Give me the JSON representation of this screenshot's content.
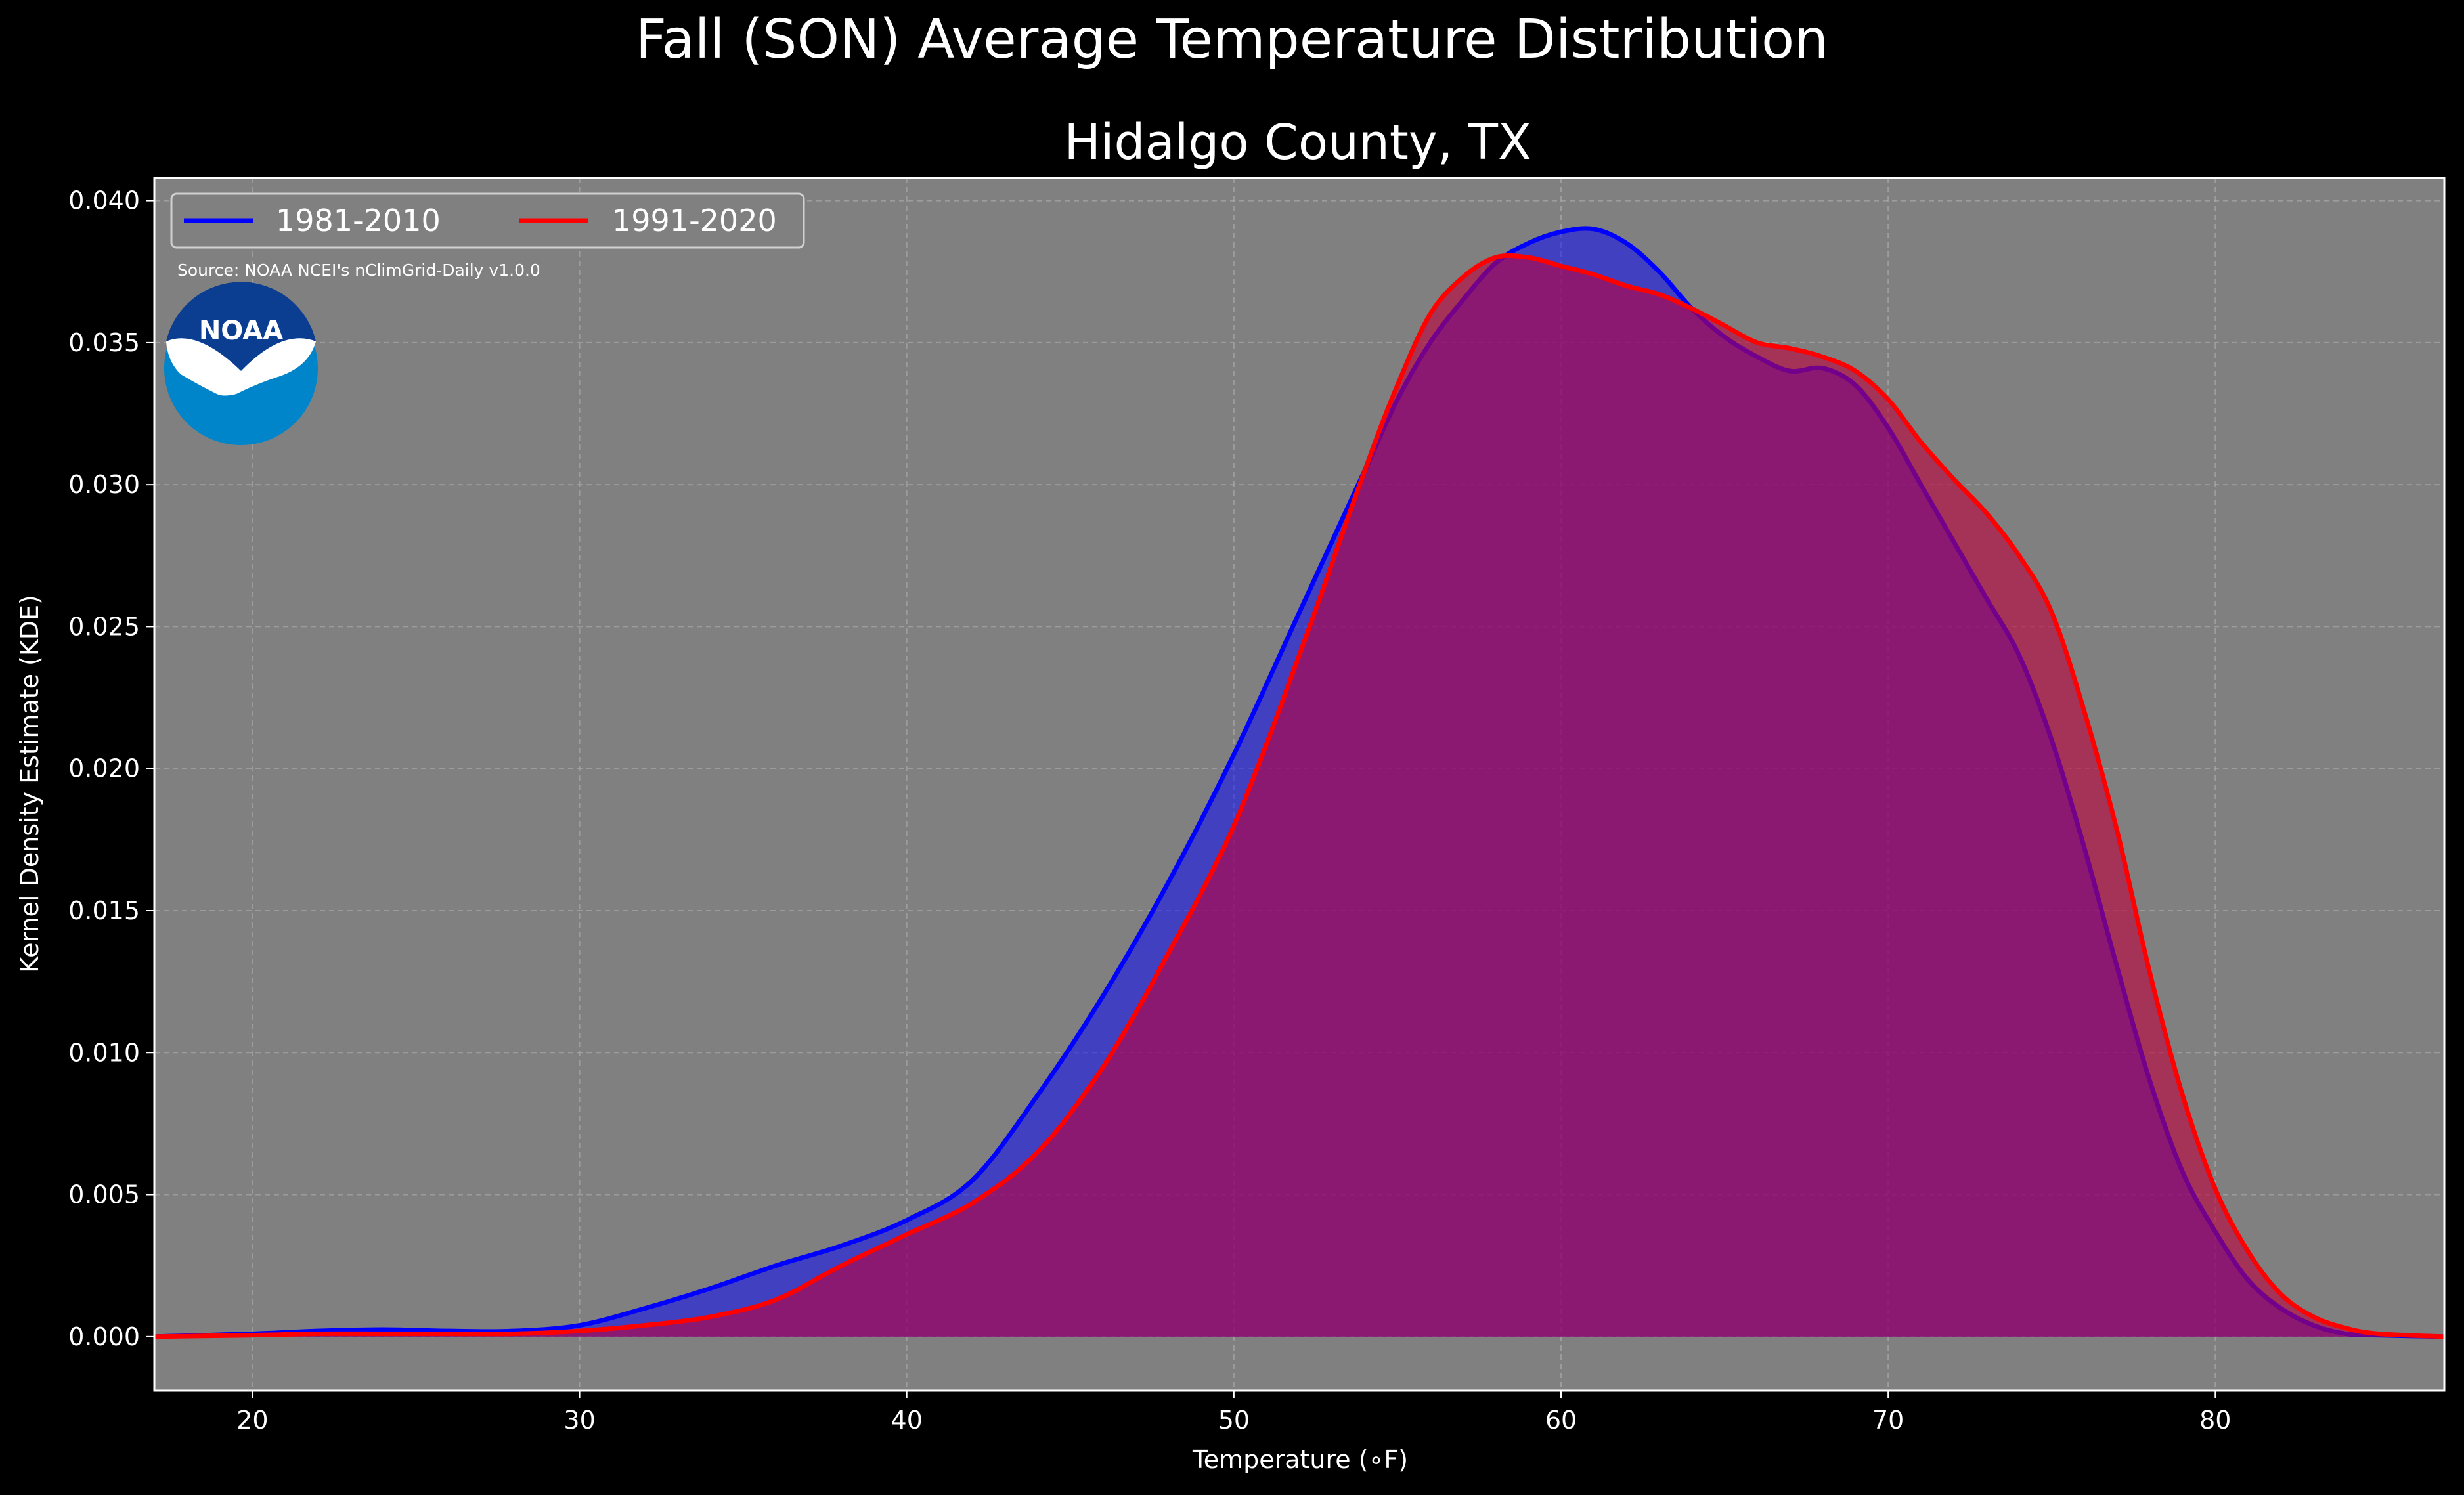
{
  "chart_data": {
    "type": "area",
    "title": "Fall (SON) Average Temperature Distribution",
    "subtitle": "Hidalgo County, TX",
    "xlabel": "Temperature (∘F)",
    "ylabel": "Kernel Density Estimate (KDE)",
    "xlim": [
      17,
      87
    ],
    "ylim": [
      -0.0019,
      0.0408
    ],
    "xticks": [
      "20",
      "30",
      "40",
      "50",
      "60",
      "70",
      "80"
    ],
    "yticks": [
      "0.000",
      "0.005",
      "0.010",
      "0.015",
      "0.020",
      "0.025",
      "0.030",
      "0.035",
      "0.040"
    ],
    "grid": true,
    "legend_position": "top-left",
    "annotation": "Source: NOAA NCEI's nClimGrid-Daily v1.0.0",
    "logo": {
      "text": "NOAA",
      "icon": "noaa-logo-icon"
    },
    "colors": {
      "background": "#000000",
      "plot_background": "#808080",
      "grid": "#b0b0b0"
    },
    "x": [
      17,
      20,
      22,
      24,
      26,
      28,
      30,
      32,
      34,
      36,
      38,
      40,
      42,
      44,
      46,
      48,
      50,
      52,
      54,
      55,
      56,
      57,
      58,
      59,
      60,
      61,
      62,
      63,
      64,
      65,
      66,
      67,
      68,
      69,
      70,
      71,
      72,
      73,
      74,
      75,
      76,
      77,
      78,
      79,
      80,
      81,
      82,
      83,
      84,
      85,
      87
    ],
    "series": [
      {
        "name": "1981-2010",
        "color": "#0000ff",
        "fill": "rgba(0,0,255,0.5)",
        "values": [
          0.0,
          0.0001,
          0.0002,
          0.00025,
          0.0002,
          0.0002,
          0.0004,
          0.001,
          0.0017,
          0.0025,
          0.0032,
          0.0041,
          0.0055,
          0.0085,
          0.012,
          0.016,
          0.0205,
          0.0255,
          0.0305,
          0.033,
          0.035,
          0.0365,
          0.0378,
          0.0385,
          0.0389,
          0.039,
          0.0385,
          0.0375,
          0.0362,
          0.0352,
          0.0345,
          0.034,
          0.0341,
          0.0335,
          0.032,
          0.03,
          0.028,
          0.026,
          0.024,
          0.021,
          0.0172,
          0.013,
          0.009,
          0.0058,
          0.0037,
          0.002,
          0.001,
          0.0004,
          0.0001,
          5e-05,
          0.0
        ]
      },
      {
        "name": "1991-2020",
        "color": "#ff0000",
        "fill": "rgba(190,0,60,0.6)",
        "values": [
          0.0,
          5e-05,
          0.0001,
          0.0001,
          0.0001,
          0.0001,
          0.0002,
          0.0004,
          0.0007,
          0.0013,
          0.0025,
          0.0036,
          0.0047,
          0.0065,
          0.0095,
          0.0135,
          0.018,
          0.024,
          0.0305,
          0.0335,
          0.036,
          0.0373,
          0.038,
          0.038,
          0.0377,
          0.0374,
          0.037,
          0.0367,
          0.0362,
          0.0356,
          0.035,
          0.0348,
          0.0345,
          0.034,
          0.033,
          0.0315,
          0.0302,
          0.029,
          0.0275,
          0.0255,
          0.022,
          0.0178,
          0.0128,
          0.0085,
          0.0052,
          0.003,
          0.0015,
          0.0007,
          0.0003,
          0.0001,
          0.0
        ]
      }
    ]
  }
}
